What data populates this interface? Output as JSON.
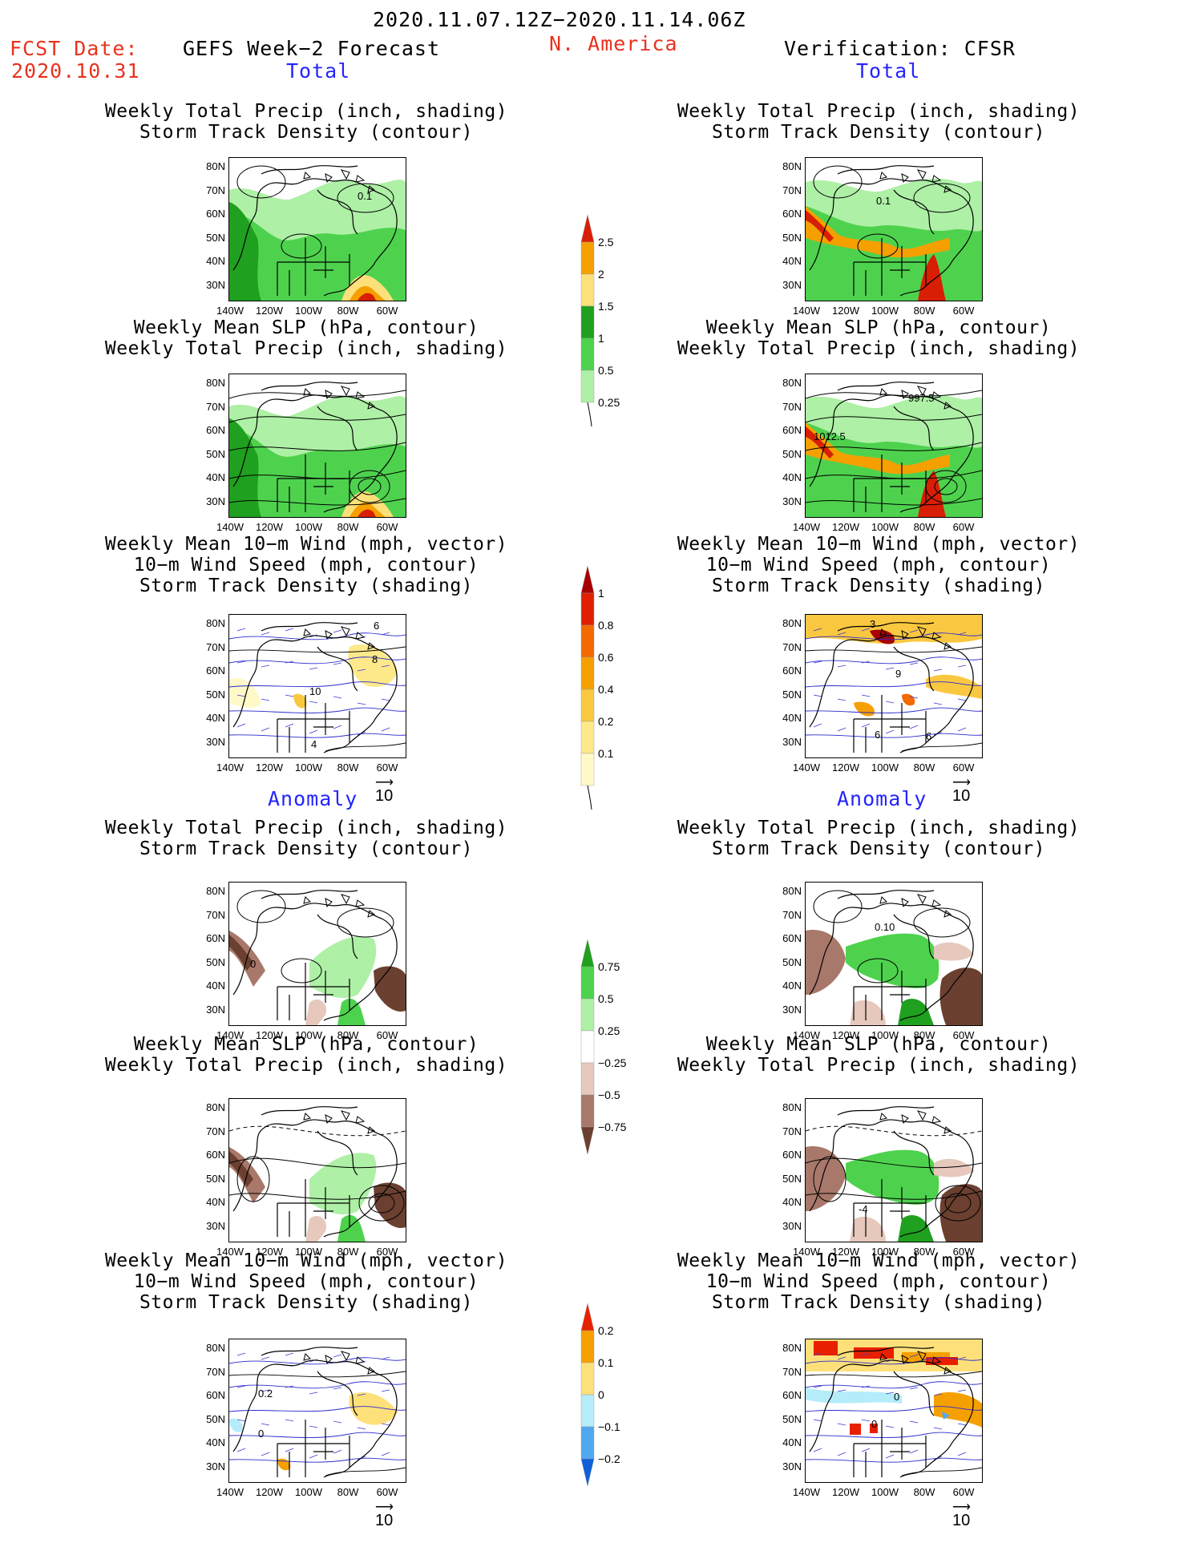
{
  "header": {
    "date_range": "2020.11.07.12Z−2020.11.14.06Z",
    "fcst_label": "FCST Date:",
    "fcst_date": "2020.10.31",
    "forecast_title": "GEFS Week−2 Forecast",
    "region": "N. America",
    "verification": "Verification: CFSR"
  },
  "sections": {
    "total": "Total",
    "anomaly": "Anomaly"
  },
  "titles": {
    "precip_storm": [
      "Weekly Total Precip (inch, shading)",
      "Storm Track Density (contour)"
    ],
    "slp_precip": [
      "Weekly Mean SLP (hPa, contour)",
      "Weekly Total Precip (inch, shading)"
    ],
    "wind_storm": [
      "Weekly Mean 10−m Wind (mph, vector)",
      "10−m Wind Speed (mph, contour)",
      "Storm Track Density (shading)"
    ]
  },
  "axes": {
    "lat_ticks": [
      "80N",
      "70N",
      "60N",
      "50N",
      "40N",
      "30N"
    ],
    "lon_ticks": [
      "140W",
      "120W",
      "100W",
      "80W",
      "60W"
    ]
  },
  "vector_ref": "10",
  "panel_labels": {
    "fc_precip": [
      "0.1"
    ],
    "obs_precip": [
      "0.1"
    ],
    "obs_slp": [
      "997.5",
      "1012.5"
    ],
    "fc_wind": [
      "6",
      "8",
      "10",
      "4"
    ],
    "obs_wind": [
      "3",
      "9",
      "6",
      "6"
    ],
    "fc_anom_precip": [
      "0"
    ],
    "obs_anom_precip": [
      "0.10"
    ],
    "obs_anom_slp": [
      "-4"
    ],
    "fc_anom_wind": [
      "0.2",
      "0"
    ],
    "obs_anom_wind": [
      "0",
      "0"
    ]
  },
  "colorbars": {
    "precip_total": {
      "labels": [
        "2.5",
        "2",
        "1.5",
        "1",
        "0.5",
        "0.25"
      ],
      "colors": [
        "#d81e05",
        "#f5a000",
        "#fde07a",
        "#1fa01f",
        "#4ed24e",
        "#aef0a6"
      ]
    },
    "storm_total": {
      "labels": [
        "1",
        "0.8",
        "0.6",
        "0.4",
        "0.2",
        "0.1"
      ],
      "colors": [
        "#a80000",
        "#e02000",
        "#f26a00",
        "#f5a000",
        "#fac840",
        "#fde98a",
        "#fff9c8"
      ]
    },
    "precip_anom": {
      "labels": [
        "0.75",
        "0.5",
        "0.25",
        "−0.25",
        "−0.5",
        "−0.75"
      ],
      "colors": [
        "#1fa01f",
        "#4ed24e",
        "#aef0a6",
        "#ffffff",
        "#e6c8bc",
        "#a8786a",
        "#6b4030"
      ]
    },
    "storm_anom": {
      "labels": [
        "0.2",
        "0.1",
        "0",
        "−0.1",
        "−0.2"
      ],
      "colors": [
        "#e82000",
        "#f5a000",
        "#fde07a",
        "#b4ecfa",
        "#50a8f0",
        "#1060d8"
      ]
    }
  }
}
